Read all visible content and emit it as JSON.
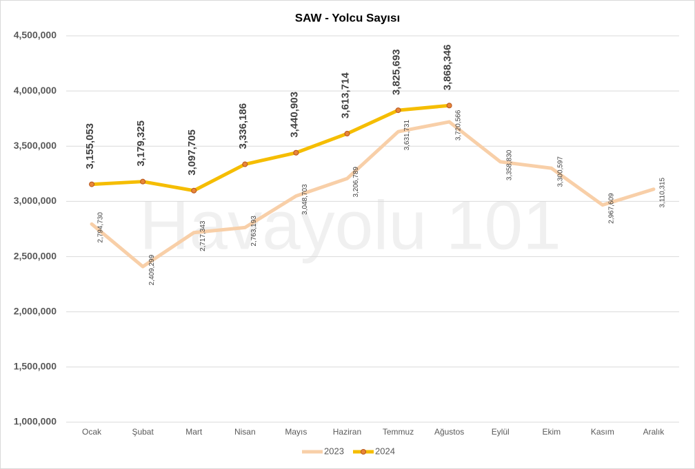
{
  "chart_data": {
    "type": "line",
    "title": "SAW - Yolcu Sayısı",
    "watermark": "Havayolu 101",
    "categories": [
      "Ocak",
      "Şubat",
      "Mart",
      "Nisan",
      "Mayıs",
      "Haziran",
      "Temmuz",
      "Ağustos",
      "Eylül",
      "Ekim",
      "Kasım",
      "Aralık"
    ],
    "series": [
      {
        "name": "2023",
        "color": "#f8cfa8",
        "values": [
          2794730,
          2409299,
          2717343,
          2763193,
          3048703,
          3206789,
          3631731,
          3720566,
          3358830,
          3300597,
          2967609,
          3110315
        ],
        "value_labels": [
          "2,794,730",
          "2,409,299",
          "2,717,343",
          "2,763,193",
          "3,048,703",
          "3,206,789",
          "3,631,731",
          "3,720,566",
          "3,358,830",
          "3,300,597",
          "2,967,609",
          "3,110,315"
        ]
      },
      {
        "name": "2024",
        "color": "#f5bd00",
        "marker_color": "#e8863a",
        "values": [
          3155053,
          3179325,
          3097705,
          3336186,
          3440903,
          3613714,
          3825693,
          3868346,
          null,
          null,
          null,
          null
        ],
        "value_labels": [
          "3,155,053",
          "3,179,325",
          "3,097,705",
          "3,336,186",
          "3,440,903",
          "3,613,714",
          "3,825,693",
          "3,868,346",
          null,
          null,
          null,
          null
        ]
      }
    ],
    "ylim": [
      1000000,
      4500000
    ],
    "yticks": [
      {
        "value": 1000000,
        "label": "1,000,000"
      },
      {
        "value": 1500000,
        "label": "1,500,000"
      },
      {
        "value": 2000000,
        "label": "2,000,000"
      },
      {
        "value": 2500000,
        "label": "2,500,000"
      },
      {
        "value": 3000000,
        "label": "3,000,000"
      },
      {
        "value": 3500000,
        "label": "3,500,000"
      },
      {
        "value": 4000000,
        "label": "4,000,000"
      },
      {
        "value": 4500000,
        "label": "4,500,000"
      }
    ],
    "grid": true,
    "legend": "bottom"
  }
}
